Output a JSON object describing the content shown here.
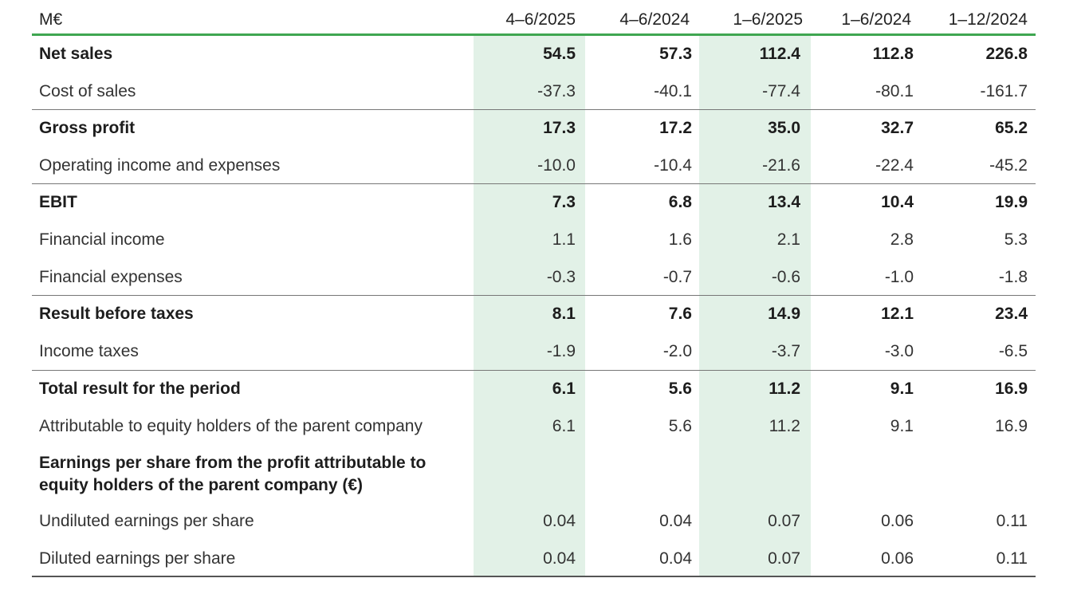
{
  "header": {
    "unit": "M€",
    "columns": [
      "4–6/2025",
      "4–6/2024",
      "1–6/2025",
      "1–6/2024",
      "1–12/2024"
    ]
  },
  "rows": [
    {
      "label": "Net sales",
      "bold": true,
      "values": [
        "54.5",
        "57.3",
        "112.4",
        "112.8",
        "226.8"
      ]
    },
    {
      "label": "Cost of sales",
      "bold": false,
      "values": [
        "-37.3",
        "-40.1",
        "-77.4",
        "-80.1",
        "-161.7"
      ]
    },
    {
      "label": "Gross profit",
      "bold": true,
      "values": [
        "17.3",
        "17.2",
        "35.0",
        "32.7",
        "65.2"
      ]
    },
    {
      "label": "Operating income and expenses",
      "bold": false,
      "values": [
        "-10.0",
        "-10.4",
        "-21.6",
        "-22.4",
        "-45.2"
      ]
    },
    {
      "label": "EBIT",
      "bold": true,
      "values": [
        "7.3",
        "6.8",
        "13.4",
        "10.4",
        "19.9"
      ]
    },
    {
      "label": "Financial income",
      "bold": false,
      "values": [
        "1.1",
        "1.6",
        "2.1",
        "2.8",
        "5.3"
      ]
    },
    {
      "label": "Financial expenses",
      "bold": false,
      "values": [
        "-0.3",
        "-0.7",
        "-0.6",
        "-1.0",
        "-1.8"
      ]
    },
    {
      "label": "Result before taxes",
      "bold": true,
      "values": [
        "8.1",
        "7.6",
        "14.9",
        "12.1",
        "23.4"
      ]
    },
    {
      "label": "Income taxes",
      "bold": false,
      "values": [
        "-1.9",
        "-2.0",
        "-3.7",
        "-3.0",
        "-6.5"
      ]
    },
    {
      "label": "Total result for the period",
      "bold": true,
      "values": [
        "6.1",
        "5.6",
        "11.2",
        "9.1",
        "16.9"
      ]
    },
    {
      "label": "Attributable to equity holders of the parent company",
      "bold": false,
      "values": [
        "6.1",
        "5.6",
        "11.2",
        "9.1",
        "16.9"
      ]
    },
    {
      "label": "Earnings per share from the profit attributable to",
      "bold": true,
      "values": [
        "",
        "",
        "",
        "",
        ""
      ]
    },
    {
      "label": "equity holders of the parent company (€)",
      "bold": true,
      "values": [
        "",
        "",
        "",
        "",
        ""
      ]
    },
    {
      "label": "Undiluted earnings per share",
      "bold": false,
      "values": [
        "0.04",
        "0.04",
        "0.07",
        "0.06",
        "0.11"
      ]
    },
    {
      "label": "Diluted earnings per share",
      "bold": false,
      "values": [
        "0.04",
        "0.04",
        "0.07",
        "0.06",
        "0.11"
      ]
    }
  ]
}
